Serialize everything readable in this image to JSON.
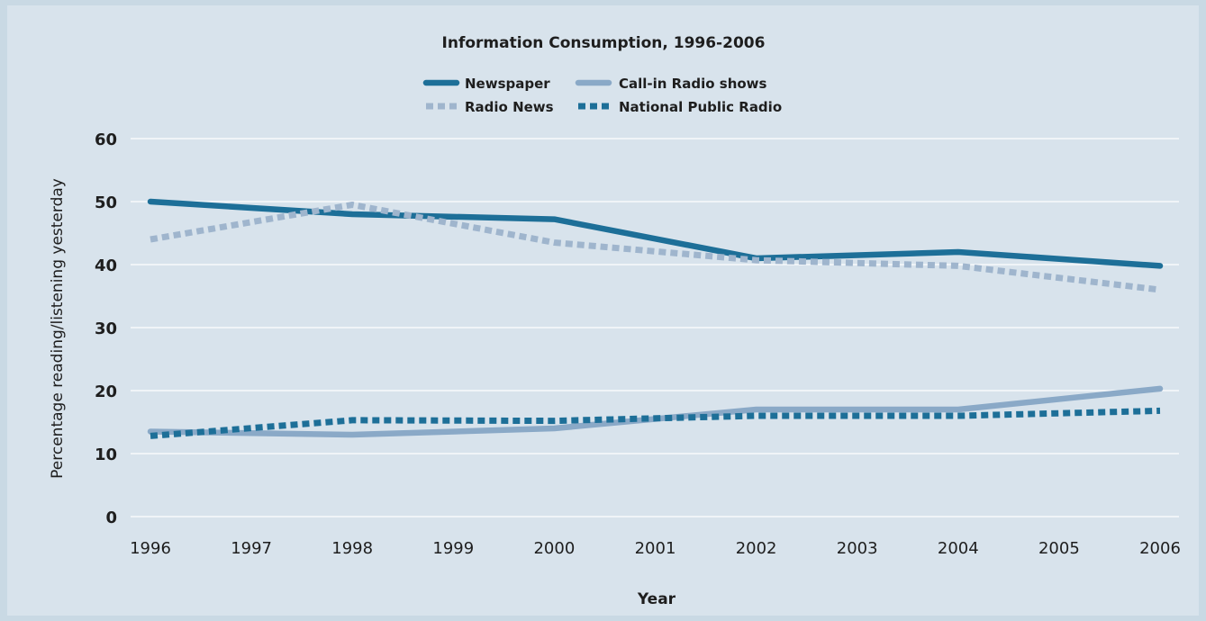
{
  "chart_data": {
    "type": "line",
    "title": "Information Consumption, 1996-2006",
    "xlabel": "Year",
    "ylabel": "Percentage reading/listening yesterday",
    "x": [
      1996,
      1997,
      1998,
      1999,
      2000,
      2001,
      2002,
      2003,
      2004,
      2005,
      2006
    ],
    "xticks": [
      "1996",
      "1997",
      "1998",
      "1999",
      "2000",
      "2001",
      "2002",
      "2003",
      "2004",
      "2005",
      "2006"
    ],
    "ylim": [
      0,
      60
    ],
    "yticks": [
      "0",
      "10",
      "20",
      "30",
      "40",
      "50",
      "60"
    ],
    "grid": true,
    "legend_position": "top",
    "series": [
      {
        "name": "Newspaper",
        "style": "solid",
        "color": "#1d6f98",
        "points": [
          [
            1996,
            50
          ],
          [
            1998,
            48
          ],
          [
            2000,
            47.2
          ],
          [
            2002,
            41
          ],
          [
            2004,
            42
          ],
          [
            2006,
            39.8
          ]
        ]
      },
      {
        "name": "Call-in Radio shows",
        "style": "solid",
        "color": "#8aa9c7",
        "points": [
          [
            1996,
            13.5
          ],
          [
            1998,
            13
          ],
          [
            2000,
            14
          ],
          [
            2002,
            17
          ],
          [
            2004,
            17
          ],
          [
            2006,
            20.3
          ]
        ]
      },
      {
        "name": "Radio News",
        "style": "dotted",
        "color": "#9fb5cd",
        "points": [
          [
            1996,
            44
          ],
          [
            1998,
            49.5
          ],
          [
            2000,
            43.5
          ],
          [
            2002,
            40.7
          ],
          [
            2004,
            39.8
          ],
          [
            2006,
            36
          ]
        ]
      },
      {
        "name": "National Public Radio",
        "style": "dotted",
        "color": "#1d6f98",
        "points": [
          [
            1996,
            12.8
          ],
          [
            1998,
            15.3
          ],
          [
            2000,
            15.2
          ],
          [
            2002,
            16
          ],
          [
            2004,
            16
          ],
          [
            2006,
            16.8
          ]
        ]
      }
    ]
  }
}
